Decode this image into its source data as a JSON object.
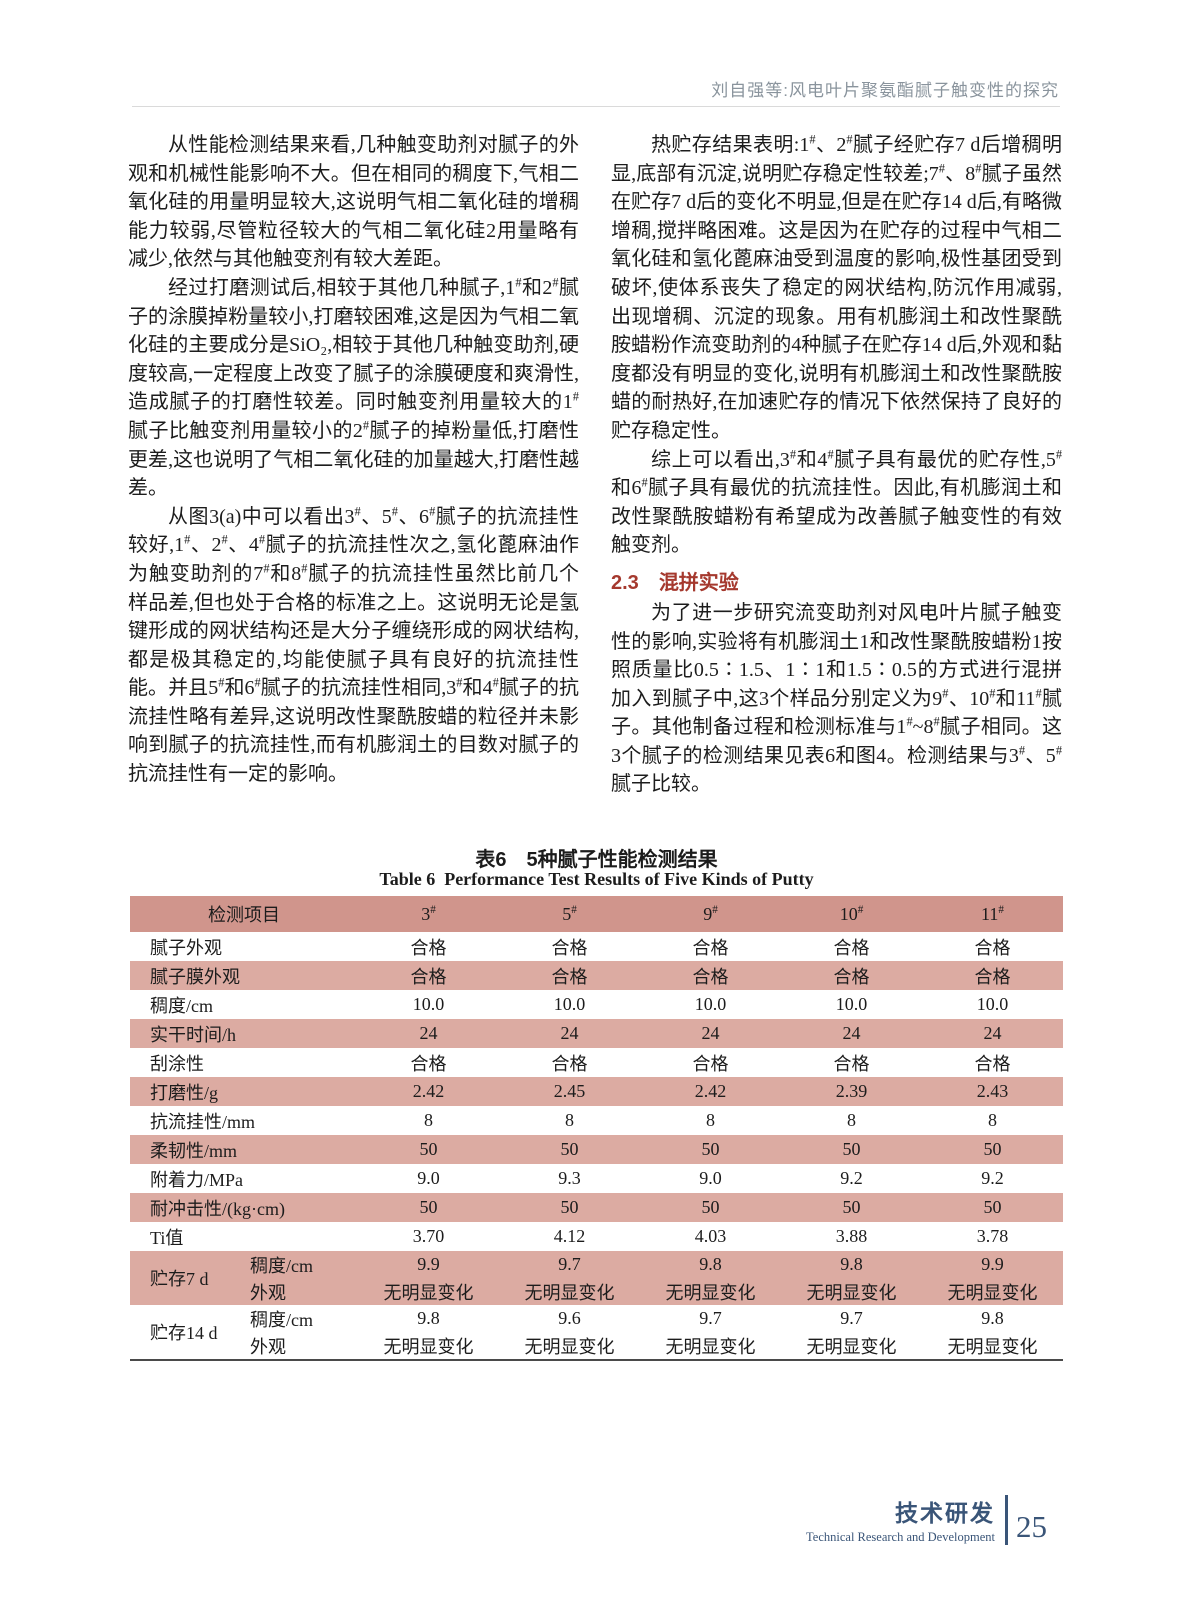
{
  "header": {
    "running_title": "刘自强等:风电叶片聚氨酯腻子触变性的探究"
  },
  "left_column": {
    "paragraphs": [
      "从性能检测结果来看,几种触变助剂对腻子的外观和机械性能影响不大。但在相同的稠度下,气相二氧化硅的用量明显较大,这说明气相二氧化硅的增稠能力较弱,尽管粒径较大的气相二氧化硅2用量略有减少,依然与其他触变剂有较大差距。",
      "经过打磨测试后,相较于其他几种腻子,1#和2#腻子的涂膜掉粉量较小,打磨较困难,这是因为气相二氧化硅的主要成分是SiO₂,相较于其他几种触变助剂,硬度较高,一定程度上改变了腻子的涂膜硬度和爽滑性,造成腻子的打磨性较差。同时触变剂用量较大的1#腻子比触变剂用量较小的2#腻子的掉粉量低,打磨性更差,这也说明了气相二氧化硅的加量越大,打磨性越差。",
      "从图3(a)中可以看出3#、5#、6#腻子的抗流挂性较好,1#、2#、4#腻子的抗流挂性次之,氢化蓖麻油作为触变助剂的7#和8#腻子的抗流挂性虽然比前几个样品差,但也处于合格的标准之上。这说明无论是氢键形成的网状结构还是大分子缠绕形成的网状结构,都是极其稳定的,均能使腻子具有良好的抗流挂性能。并且5#和6#腻子的抗流挂性相同,3#和4#腻子的抗流挂性略有差异,这说明改性聚酰胺蜡的粒径并未影响到腻子的抗流挂性,而有机膨润土的目数对腻子的抗流挂性有一定的影响。"
    ]
  },
  "right_column": {
    "paragraphs": [
      "热贮存结果表明:1#、2#腻子经贮存7 d后增稠明显,底部有沉淀,说明贮存稳定性较差;7#、8#腻子虽然在贮存7 d后的变化不明显,但是在贮存14 d后,有略微增稠,搅拌略困难。这是因为在贮存的过程中气相二氧化硅和氢化蓖麻油受到温度的影响,极性基团受到破坏,使体系丧失了稳定的网状结构,防沉作用减弱,出现增稠、沉淀的现象。用有机膨润土和改性聚酰胺蜡粉作流变助剂的4种腻子在贮存14 d后,外观和黏度都没有明显的变化,说明有机膨润土和改性聚酰胺蜡的耐热好,在加速贮存的情况下依然保持了良好的贮存稳定性。",
      "综上可以看出,3#和4#腻子具有最优的贮存性,5#和6#腻子具有最优的抗流挂性。因此,有机膨润土和改性聚酰胺蜡粉有希望成为改善腻子触变性的有效触变剂。",
      "为了进一步研究流变助剂对风电叶片腻子触变性的影响,实验将有机膨润土1和改性聚酰胺蜡粉1按照质量比0.5∶1.5、1∶1和1.5∶0.5的方式进行混拼加入到腻子中,这3个样品分别定义为9#、10#和11#腻子。其他制备过程和检测标准与1#~8#腻子相同。这3个腻子的检测结果见表6和图4。检测结果与3#、5#腻子比较。"
    ],
    "section": {
      "number": "2.3",
      "title": "混拼实验"
    }
  },
  "table": {
    "caption_zh": "表6　5种腻子性能检测结果",
    "caption_en": "Table 6  Performance Test Results of Five Kinds of Putty",
    "columns": [
      "检测项目",
      "3#",
      "5#",
      "9#",
      "10#",
      "11#"
    ],
    "rows": [
      {
        "label": "腻子外观",
        "values": [
          "合格",
          "合格",
          "合格",
          "合格",
          "合格"
        ]
      },
      {
        "label": "腻子膜外观",
        "values": [
          "合格",
          "合格",
          "合格",
          "合格",
          "合格"
        ]
      },
      {
        "label": "稠度/cm",
        "values": [
          "10.0",
          "10.0",
          "10.0",
          "10.0",
          "10.0"
        ]
      },
      {
        "label": "实干时间/h",
        "values": [
          "24",
          "24",
          "24",
          "24",
          "24"
        ]
      },
      {
        "label": "刮涂性",
        "values": [
          "合格",
          "合格",
          "合格",
          "合格",
          "合格"
        ]
      },
      {
        "label": "打磨性/g",
        "values": [
          "2.42",
          "2.45",
          "2.42",
          "2.39",
          "2.43"
        ]
      },
      {
        "label": "抗流挂性/mm",
        "values": [
          "8",
          "8",
          "8",
          "8",
          "8"
        ]
      },
      {
        "label": "柔韧性/mm",
        "values": [
          "50",
          "50",
          "50",
          "50",
          "50"
        ]
      },
      {
        "label": "附着力/MPa",
        "values": [
          "9.0",
          "9.3",
          "9.0",
          "9.2",
          "9.2"
        ]
      },
      {
        "label": "耐冲击性/(kg·cm)",
        "values": [
          "50",
          "50",
          "50",
          "50",
          "50"
        ]
      },
      {
        "label": "Ti值",
        "values": [
          "3.70",
          "4.12",
          "4.03",
          "3.88",
          "3.78"
        ]
      }
    ],
    "storage_groups": [
      {
        "label": "贮存7 d",
        "sub_rows": [
          {
            "label": "稠度/cm",
            "values": [
              "9.9",
              "9.7",
              "9.8",
              "9.8",
              "9.9"
            ]
          },
          {
            "label": "外观",
            "values": [
              "无明显变化",
              "无明显变化",
              "无明显变化",
              "无明显变化",
              "无明显变化"
            ]
          }
        ]
      },
      {
        "label": "贮存14 d",
        "sub_rows": [
          {
            "label": "稠度/cm",
            "values": [
              "9.8",
              "9.6",
              "9.7",
              "9.7",
              "9.8"
            ]
          },
          {
            "label": "外观",
            "values": [
              "无明显变化",
              "无明显变化",
              "无明显变化",
              "无明显变化",
              "无明显变化"
            ]
          }
        ]
      }
    ]
  },
  "footer": {
    "label_zh": "技术研发",
    "label_en": "Technical Research and Development",
    "page_number": "25"
  },
  "colors": {
    "table_header_bg": "#d0958c",
    "table_stripe_bg": "#dcaba2",
    "section_heading": "#a5392e",
    "footer_navy": "#3a5578",
    "running_title_gray": "#8a949d"
  }
}
